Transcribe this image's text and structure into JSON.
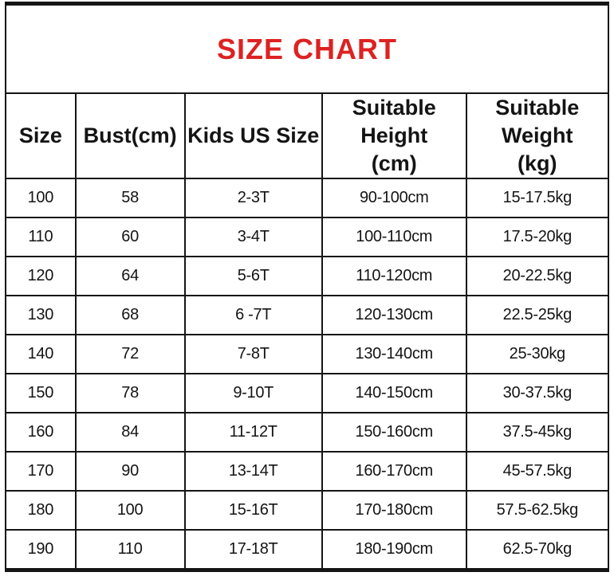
{
  "title": {
    "label": "SIZE CHART",
    "color": "#dd2222"
  },
  "table": {
    "headers": [
      "Size",
      "Bust(cm)",
      "Kids US Size",
      "Suitable\nHeight\n(cm)",
      "Suitable\nWeight\n(kg)"
    ],
    "rows": [
      [
        "100",
        "58",
        "2-3T",
        "90-100cm",
        "15-17.5kg"
      ],
      [
        "110",
        "60",
        "3-4T",
        "100-110cm",
        "17.5-20kg"
      ],
      [
        "120",
        "64",
        "5-6T",
        "110-120cm",
        "20-22.5kg"
      ],
      [
        "130",
        "68",
        "6 -7T",
        "120-130cm",
        "22.5-25kg"
      ],
      [
        "140",
        "72",
        "7-8T",
        "130-140cm",
        "25-30kg"
      ],
      [
        "150",
        "78",
        "9-10T",
        "140-150cm",
        "30-37.5kg"
      ],
      [
        "160",
        "84",
        "11-12T",
        "150-160cm",
        "37.5-45kg"
      ],
      [
        "170",
        "90",
        "13-14T",
        "160-170cm",
        "45-57.5kg"
      ],
      [
        "180",
        "100",
        "15-16T",
        "170-180cm",
        "57.5-62.5kg"
      ],
      [
        "190",
        "110",
        "17-18T",
        "180-190cm",
        "62.5-70kg"
      ]
    ]
  }
}
